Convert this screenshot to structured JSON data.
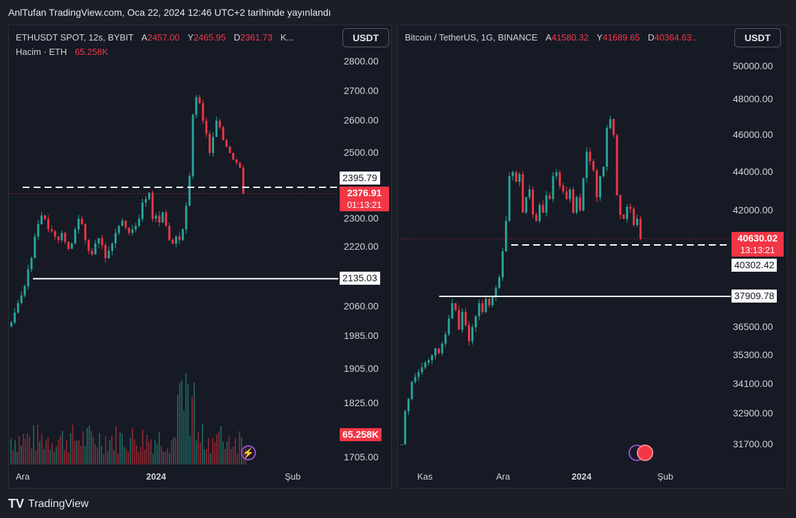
{
  "header": {
    "published": "AnlTufan TradingView.com, Oca 22, 2024 12:46 UTC+2 tarihinde yayınlandı"
  },
  "footer": {
    "brand": "TradingView",
    "logo": "TV"
  },
  "eth": {
    "symbol": "ETHUSDT SPOT, 12s, BYBIT",
    "o_label": "A",
    "o_value": "2457.00",
    "h_label": "Y",
    "h_value": "2465.95",
    "l_label": "D",
    "l_value": "2361.73",
    "more": "K...",
    "volume_label": "Hacim · ETH",
    "volume_value": "65.258K",
    "currency": "USDT",
    "y_ticks": [
      "2800.00",
      "2700.00",
      "2600.00",
      "2500.00",
      "2300.00",
      "2220.00",
      "2060.00",
      "1985.00",
      "1905.00",
      "1825.00",
      "1705.00"
    ],
    "x_ticks": [
      "Ara",
      "2024",
      "Şub"
    ],
    "level_dashed": "2395.79",
    "price": "2376.91",
    "countdown": "01:13:21",
    "level_solid": "2135.03",
    "volume_badge": "65.258K"
  },
  "btc": {
    "symbol": "Bitcoin / TetherUS, 1G, BINANCE",
    "o_label": "A",
    "o_value": "41580.32",
    "h_label": "Y",
    "h_value": "41689.65",
    "l_label": "D",
    "l_value": "40364.63...",
    "currency": "USDT",
    "y_ticks": [
      "50000.00",
      "48000.00",
      "46000.00",
      "44000.00",
      "42000.00",
      "36500.00",
      "35300.00",
      "34100.00",
      "32900.00",
      "31700.00"
    ],
    "x_ticks": [
      "Kas",
      "Ara",
      "2024",
      "Şub"
    ],
    "price": "40630.02",
    "countdown": "13:13:21",
    "level_dashed": "40302.42",
    "level_solid": "37909.78"
  },
  "colors": {
    "up": "#26a69a",
    "down": "#f23645",
    "bg": "#161a25"
  },
  "chart_data": [
    {
      "type": "candlestick",
      "title": "ETHUSDT SPOT, 12s, BYBIT",
      "ylim": [
        1705,
        2800
      ],
      "x_ticks": [
        "Ara",
        "2024",
        "Şub"
      ],
      "closes": [
        2020,
        2045,
        2070,
        2090,
        2115,
        2160,
        2190,
        2250,
        2285,
        2310,
        2300,
        2270,
        2265,
        2250,
        2240,
        2260,
        2235,
        2215,
        2230,
        2270,
        2300,
        2285,
        2240,
        2210,
        2200,
        2230,
        2245,
        2225,
        2190,
        2210,
        2230,
        2260,
        2280,
        2295,
        2275,
        2260,
        2270,
        2280,
        2300,
        2350,
        2360,
        2380,
        2300,
        2310,
        2290,
        2320,
        2280,
        2240,
        2230,
        2250,
        2240,
        2270,
        2340,
        2430,
        2620,
        2680,
        2660,
        2600,
        2560,
        2500,
        2550,
        2600,
        2580,
        2540,
        2520,
        2500,
        2480,
        2470,
        2455,
        2376.91
      ],
      "levels": [
        2395.79,
        2135.03
      ],
      "last_price": 2376.91
    },
    {
      "type": "candlestick",
      "title": "Bitcoin / TetherUS, 1G, BINANCE",
      "ylim": [
        31000,
        50500
      ],
      "x_ticks": [
        "Kas",
        "Ara",
        "2024",
        "Şub"
      ],
      "closes": [
        31400,
        33000,
        33500,
        34200,
        34400,
        34600,
        34800,
        35000,
        35100,
        35300,
        35600,
        35400,
        35800,
        36200,
        36900,
        37600,
        37300,
        36400,
        37200,
        36600,
        35900,
        36500,
        37000,
        37600,
        37200,
        37800,
        37500,
        37900,
        38300,
        38800,
        40000,
        41500,
        43800,
        44000,
        43500,
        43900,
        41900,
        42700,
        43100,
        41800,
        41500,
        42300,
        41900,
        42800,
        42600,
        43800,
        44000,
        43300,
        43000,
        42600,
        43100,
        41900,
        42700,
        42000,
        43700,
        45100,
        44600,
        44100,
        42700,
        43800,
        44300,
        46400,
        46900,
        46000,
        42800,
        41800,
        41600,
        42200,
        42100,
        41300,
        41600,
        40630.02
      ],
      "levels": [
        40302.42,
        37909.78
      ],
      "last_price": 40630.02
    }
  ]
}
